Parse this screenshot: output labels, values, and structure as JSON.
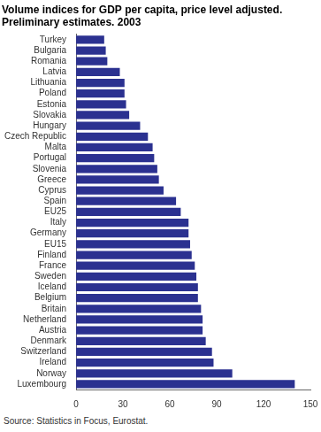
{
  "chart_data": {
    "type": "bar",
    "orientation": "horizontal",
    "title": [
      "Volume indices for GDP per capita, price level adjusted.",
      "Preliminary estimates. 2003"
    ],
    "source": "Source: Statistics in Focus, Eurostat.",
    "categories": [
      "Turkey",
      "Bulgaria",
      "Romania",
      "Latvia",
      "Lithuania",
      "Poland",
      "Estonia",
      "Slovakia",
      "Hungary",
      "Czech Republic",
      "Malta",
      "Portugal",
      "Slovenia",
      "Greece",
      "Cyprus",
      "Spain",
      "EU25",
      "Italy",
      "Germany",
      "EU15",
      "Finland",
      "France",
      "Sweden",
      "Iceland",
      "Belgium",
      "Britain",
      "Netherland",
      "Austria",
      "Denmark",
      "Switzerland",
      "Ireland",
      "Norway",
      "Luxembourg"
    ],
    "values": [
      18,
      19,
      20,
      28,
      31,
      31,
      32,
      34,
      41,
      46,
      49,
      50,
      52,
      53,
      56,
      64,
      67,
      72,
      72,
      73,
      74,
      76,
      77,
      78,
      78,
      80,
      81,
      81,
      83,
      87,
      88,
      100,
      140
    ],
    "color": "#2b3190",
    "xlim": [
      0,
      150
    ],
    "xticks": [
      0,
      30,
      60,
      90,
      120,
      150
    ],
    "grid": false
  }
}
